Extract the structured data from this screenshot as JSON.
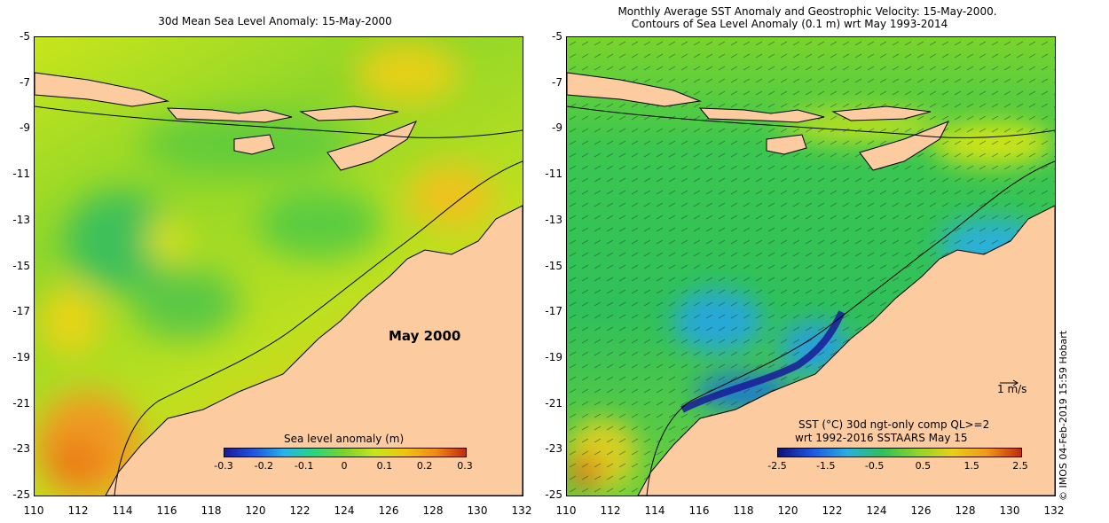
{
  "left_panel": {
    "title": "30d Mean Sea Level Anomaly: 15-May-2000",
    "month_label": "May 2000",
    "colorbar": {
      "title": "Sea level anomaly (m)",
      "ticks": [
        "-0.3",
        "-0.2",
        "-0.1",
        "0",
        "0.1",
        "0.2",
        "0.3"
      ]
    }
  },
  "right_panel": {
    "title_line1": "Monthly Average SST Anomaly  and Geostrophic Velocity: 15-May-2000.",
    "title_line2": "Contours of Sea Level Anomaly (0.1 m) wrt May 1993-2014",
    "velocity_scale": "1 m/s",
    "colorbar": {
      "title_line1": "SST (°C) 30d ngt-only comp QL>=2",
      "title_line2": "wrt 1992-2016 SSTAARS May 15",
      "ticks": [
        "-2.5",
        "-1.5",
        "-0.5",
        "0.5",
        "1.5",
        "2.5"
      ]
    }
  },
  "axes": {
    "lat_labels": [
      "-5",
      "-7",
      "-9",
      "-11",
      "-13",
      "-15",
      "-17",
      "-19",
      "-21",
      "-23",
      "-25"
    ],
    "lon_labels": [
      "110",
      "112",
      "114",
      "116",
      "118",
      "120",
      "122",
      "124",
      "126",
      "128",
      "130",
      "132"
    ]
  },
  "credit": "© IMOS 04-Feb-2019 15:59 Hobart",
  "colors": {
    "land": "#fccca0",
    "sla_mid": "#7ed32a",
    "sst_mid": "#2fc05a"
  }
}
